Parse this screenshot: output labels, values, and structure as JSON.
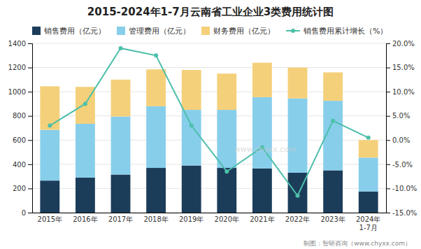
{
  "chart_data": {
    "type": "bar",
    "title": "2015-2024年1-7月云南省工业企业3类费用统计图",
    "stacked": true,
    "grid": true,
    "legend": "top",
    "categories": [
      "2015年",
      "2016年",
      "2017年",
      "2018年",
      "2019年",
      "2020年",
      "2021年",
      "2022年",
      "2023年",
      "2024年\n1-7月"
    ],
    "series": [
      {
        "name": "销售费用（亿元）",
        "type": "bar",
        "color": "#1c3d5a",
        "values": [
          265,
          290,
          315,
          370,
          390,
          370,
          365,
          330,
          350,
          175
        ]
      },
      {
        "name": "管理费用（亿元）",
        "type": "bar",
        "color": "#87ceeb",
        "values": [
          420,
          445,
          480,
          510,
          460,
          480,
          590,
          615,
          575,
          280
        ]
      },
      {
        "name": "财务费用（亿元）",
        "type": "bar",
        "color": "#f5d07a",
        "values": [
          360,
          305,
          305,
          305,
          330,
          300,
          285,
          255,
          235,
          145
        ]
      },
      {
        "name": "销售费用累计增长（%）",
        "type": "line",
        "axis": "y2",
        "marker": "circle",
        "color": "#4dbfaa",
        "values": [
          3.0,
          7.5,
          19.0,
          17.5,
          3.0,
          -6.5,
          -1.5,
          -11.5,
          4.0,
          0.5
        ]
      }
    ],
    "ylim": [
      0,
      1400
    ],
    "yticks": [
      0,
      200,
      400,
      600,
      800,
      1000,
      1200,
      1400
    ],
    "y2lim": [
      -15.0,
      20.0
    ],
    "y2ticks": [
      {
        "value": -15.0,
        "label": "-15.0%"
      },
      {
        "value": -10.0,
        "label": "-10.0%"
      },
      {
        "value": -5.0,
        "label": "-5.0%"
      },
      {
        "value": 0.0,
        "label": "0.0%"
      },
      {
        "value": 5.0,
        "label": "5.0%"
      },
      {
        "value": 10.0,
        "label": "10.0%"
      },
      {
        "value": 15.0,
        "label": "15.0%"
      },
      {
        "value": 20.0,
        "label": "20.0%"
      }
    ],
    "annotations": [
      {
        "text": "制图：智研咨询（www.chyxx.com）"
      },
      {
        "text": "www.chyxx.com"
      }
    ]
  }
}
